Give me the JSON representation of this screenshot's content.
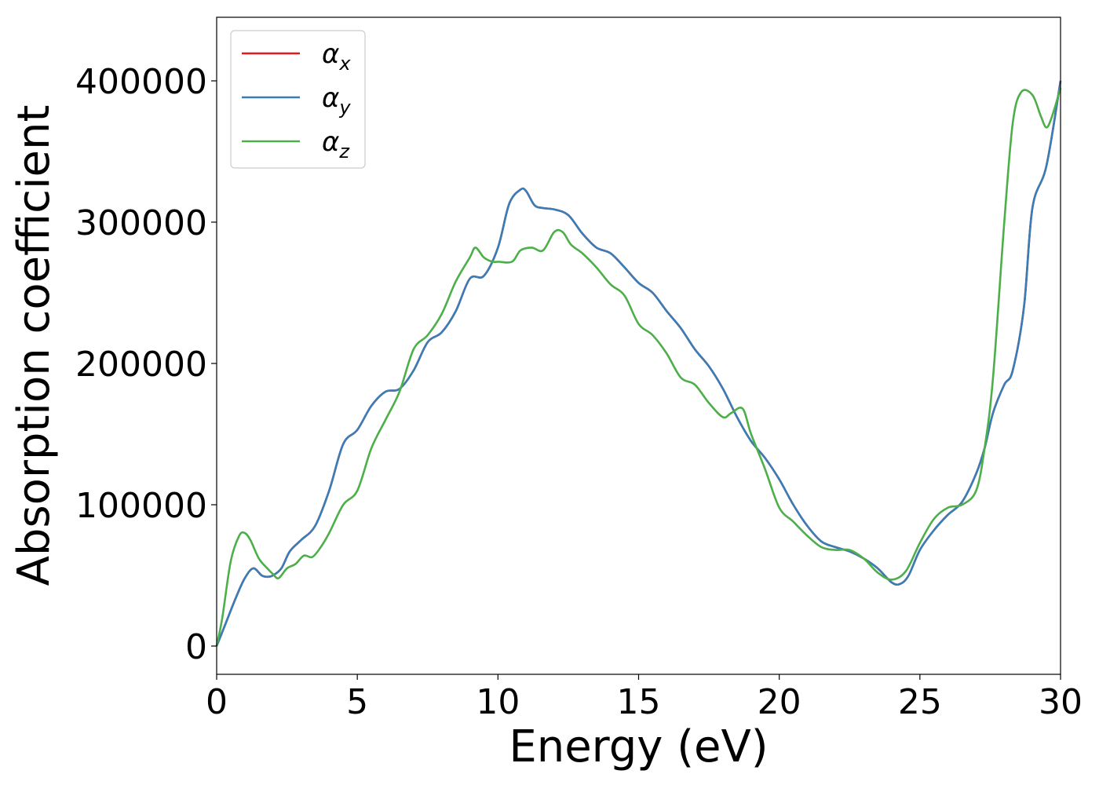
{
  "chart_data": {
    "type": "line",
    "xlabel": "Energy (eV)",
    "ylabel": "Absorption coefficient",
    "xlim": [
      0,
      30
    ],
    "ylim": [
      -20000,
      445000
    ],
    "xticks": [
      "0",
      "5",
      "10",
      "15",
      "20",
      "25",
      "30"
    ],
    "yticks": [
      "0",
      "100000",
      "200000",
      "300000",
      "400000"
    ],
    "grid": false,
    "legend": {
      "placement": "top-left",
      "entries": [
        {
          "symbol": "α",
          "sub": "x",
          "color": "#e41a1c"
        },
        {
          "symbol": "α",
          "sub": "y",
          "color": "#377eb8"
        },
        {
          "symbol": "α",
          "sub": "z",
          "color": "#4daf4a"
        }
      ]
    },
    "series": [
      {
        "name": "αx",
        "color": "#e41a1c",
        "x": [
          0,
          0.3,
          0.7,
          1.0,
          1.3,
          1.6,
          1.8,
          2.0,
          2.3,
          2.6,
          3.0,
          3.5,
          4.0,
          4.5,
          5.0,
          5.5,
          6.0,
          6.5,
          7.0,
          7.5,
          8.0,
          8.5,
          9.0,
          9.5,
          10.0,
          10.4,
          10.8,
          11.0,
          11.3,
          11.6,
          12.0,
          12.5,
          13.0,
          13.5,
          14.0,
          14.5,
          15.0,
          15.5,
          16.0,
          16.5,
          17.0,
          17.5,
          18.0,
          18.5,
          19.0,
          19.5,
          20.0,
          20.5,
          21.0,
          21.5,
          22.0,
          22.5,
          23.0,
          23.5,
          24.0,
          24.3,
          24.6,
          25.0,
          25.5,
          26.0,
          26.5,
          27.0,
          27.3,
          27.6,
          28.0,
          28.3,
          28.7,
          29.0,
          29.5,
          30.0
        ],
        "y": [
          0,
          15000,
          35000,
          48000,
          55000,
          50000,
          49000,
          50000,
          55000,
          67000,
          75000,
          85000,
          110000,
          143000,
          153000,
          170000,
          180000,
          182000,
          195000,
          215000,
          222000,
          237000,
          260000,
          262000,
          282000,
          313000,
          323000,
          322000,
          312000,
          310000,
          309000,
          305000,
          292000,
          282000,
          278000,
          268000,
          257000,
          250000,
          237000,
          225000,
          210000,
          198000,
          182000,
          162000,
          145000,
          133000,
          118000,
          100000,
          85000,
          74000,
          70000,
          67000,
          62000,
          55000,
          45000,
          44000,
          50000,
          68000,
          82000,
          93000,
          102000,
          122000,
          140000,
          165000,
          185000,
          195000,
          240000,
          310000,
          340000,
          400000
        ]
      },
      {
        "name": "αy",
        "color": "#377eb8",
        "x": [
          0,
          0.3,
          0.7,
          1.0,
          1.3,
          1.6,
          1.8,
          2.0,
          2.3,
          2.6,
          3.0,
          3.5,
          4.0,
          4.5,
          5.0,
          5.5,
          6.0,
          6.5,
          7.0,
          7.5,
          8.0,
          8.5,
          9.0,
          9.5,
          10.0,
          10.4,
          10.8,
          11.0,
          11.3,
          11.6,
          12.0,
          12.5,
          13.0,
          13.5,
          14.0,
          14.5,
          15.0,
          15.5,
          16.0,
          16.5,
          17.0,
          17.5,
          18.0,
          18.5,
          19.0,
          19.5,
          20.0,
          20.5,
          21.0,
          21.5,
          22.0,
          22.5,
          23.0,
          23.5,
          24.0,
          24.3,
          24.6,
          25.0,
          25.5,
          26.0,
          26.5,
          27.0,
          27.3,
          27.6,
          28.0,
          28.3,
          28.7,
          29.0,
          29.5,
          30.0
        ],
        "y": [
          0,
          15000,
          35000,
          48000,
          55000,
          50000,
          49000,
          50000,
          55000,
          67000,
          75000,
          85000,
          110000,
          143000,
          153000,
          170000,
          180000,
          182000,
          195000,
          215000,
          222000,
          237000,
          260000,
          262000,
          282000,
          313000,
          323000,
          322000,
          312000,
          310000,
          309000,
          305000,
          292000,
          282000,
          278000,
          268000,
          257000,
          250000,
          237000,
          225000,
          210000,
          198000,
          182000,
          162000,
          145000,
          133000,
          118000,
          100000,
          85000,
          74000,
          70000,
          67000,
          62000,
          55000,
          45000,
          44000,
          50000,
          68000,
          82000,
          93000,
          102000,
          122000,
          140000,
          165000,
          185000,
          195000,
          240000,
          310000,
          340000,
          400000
        ]
      },
      {
        "name": "αz",
        "color": "#4daf4a",
        "x": [
          0,
          0.2,
          0.5,
          0.8,
          1.0,
          1.2,
          1.5,
          1.8,
          2.0,
          2.2,
          2.5,
          2.8,
          3.1,
          3.4,
          3.7,
          4.0,
          4.5,
          5.0,
          5.5,
          6.0,
          6.5,
          7.0,
          7.5,
          8.0,
          8.5,
          9.0,
          9.2,
          9.5,
          9.8,
          10.0,
          10.5,
          10.8,
          11.2,
          11.6,
          12.0,
          12.3,
          12.6,
          13.0,
          13.5,
          14.0,
          14.5,
          15.0,
          15.5,
          16.0,
          16.5,
          17.0,
          17.5,
          18.0,
          18.3,
          18.7,
          19.0,
          19.5,
          20.0,
          20.5,
          21.0,
          21.5,
          22.0,
          22.5,
          23.0,
          23.5,
          24.0,
          24.5,
          25.0,
          25.5,
          26.0,
          26.5,
          27.0,
          27.3,
          27.6,
          28.0,
          28.3,
          28.6,
          29.0,
          29.3,
          29.5,
          29.7,
          30.0
        ],
        "y": [
          0,
          20000,
          60000,
          78000,
          80000,
          75000,
          62000,
          55000,
          51000,
          48000,
          55000,
          58000,
          64000,
          63000,
          70000,
          80000,
          100000,
          110000,
          140000,
          160000,
          180000,
          210000,
          220000,
          235000,
          258000,
          275000,
          282000,
          275000,
          272000,
          272000,
          272000,
          280000,
          282000,
          280000,
          293000,
          293000,
          284000,
          278000,
          268000,
          256000,
          248000,
          228000,
          220000,
          207000,
          190000,
          185000,
          172000,
          162000,
          165000,
          168000,
          150000,
          125000,
          98000,
          88000,
          78000,
          70000,
          68000,
          68000,
          62000,
          52000,
          47000,
          53000,
          73000,
          90000,
          98000,
          100000,
          110000,
          140000,
          190000,
          300000,
          370000,
          392000,
          390000,
          375000,
          367000,
          375000,
          395000
        ]
      }
    ]
  }
}
